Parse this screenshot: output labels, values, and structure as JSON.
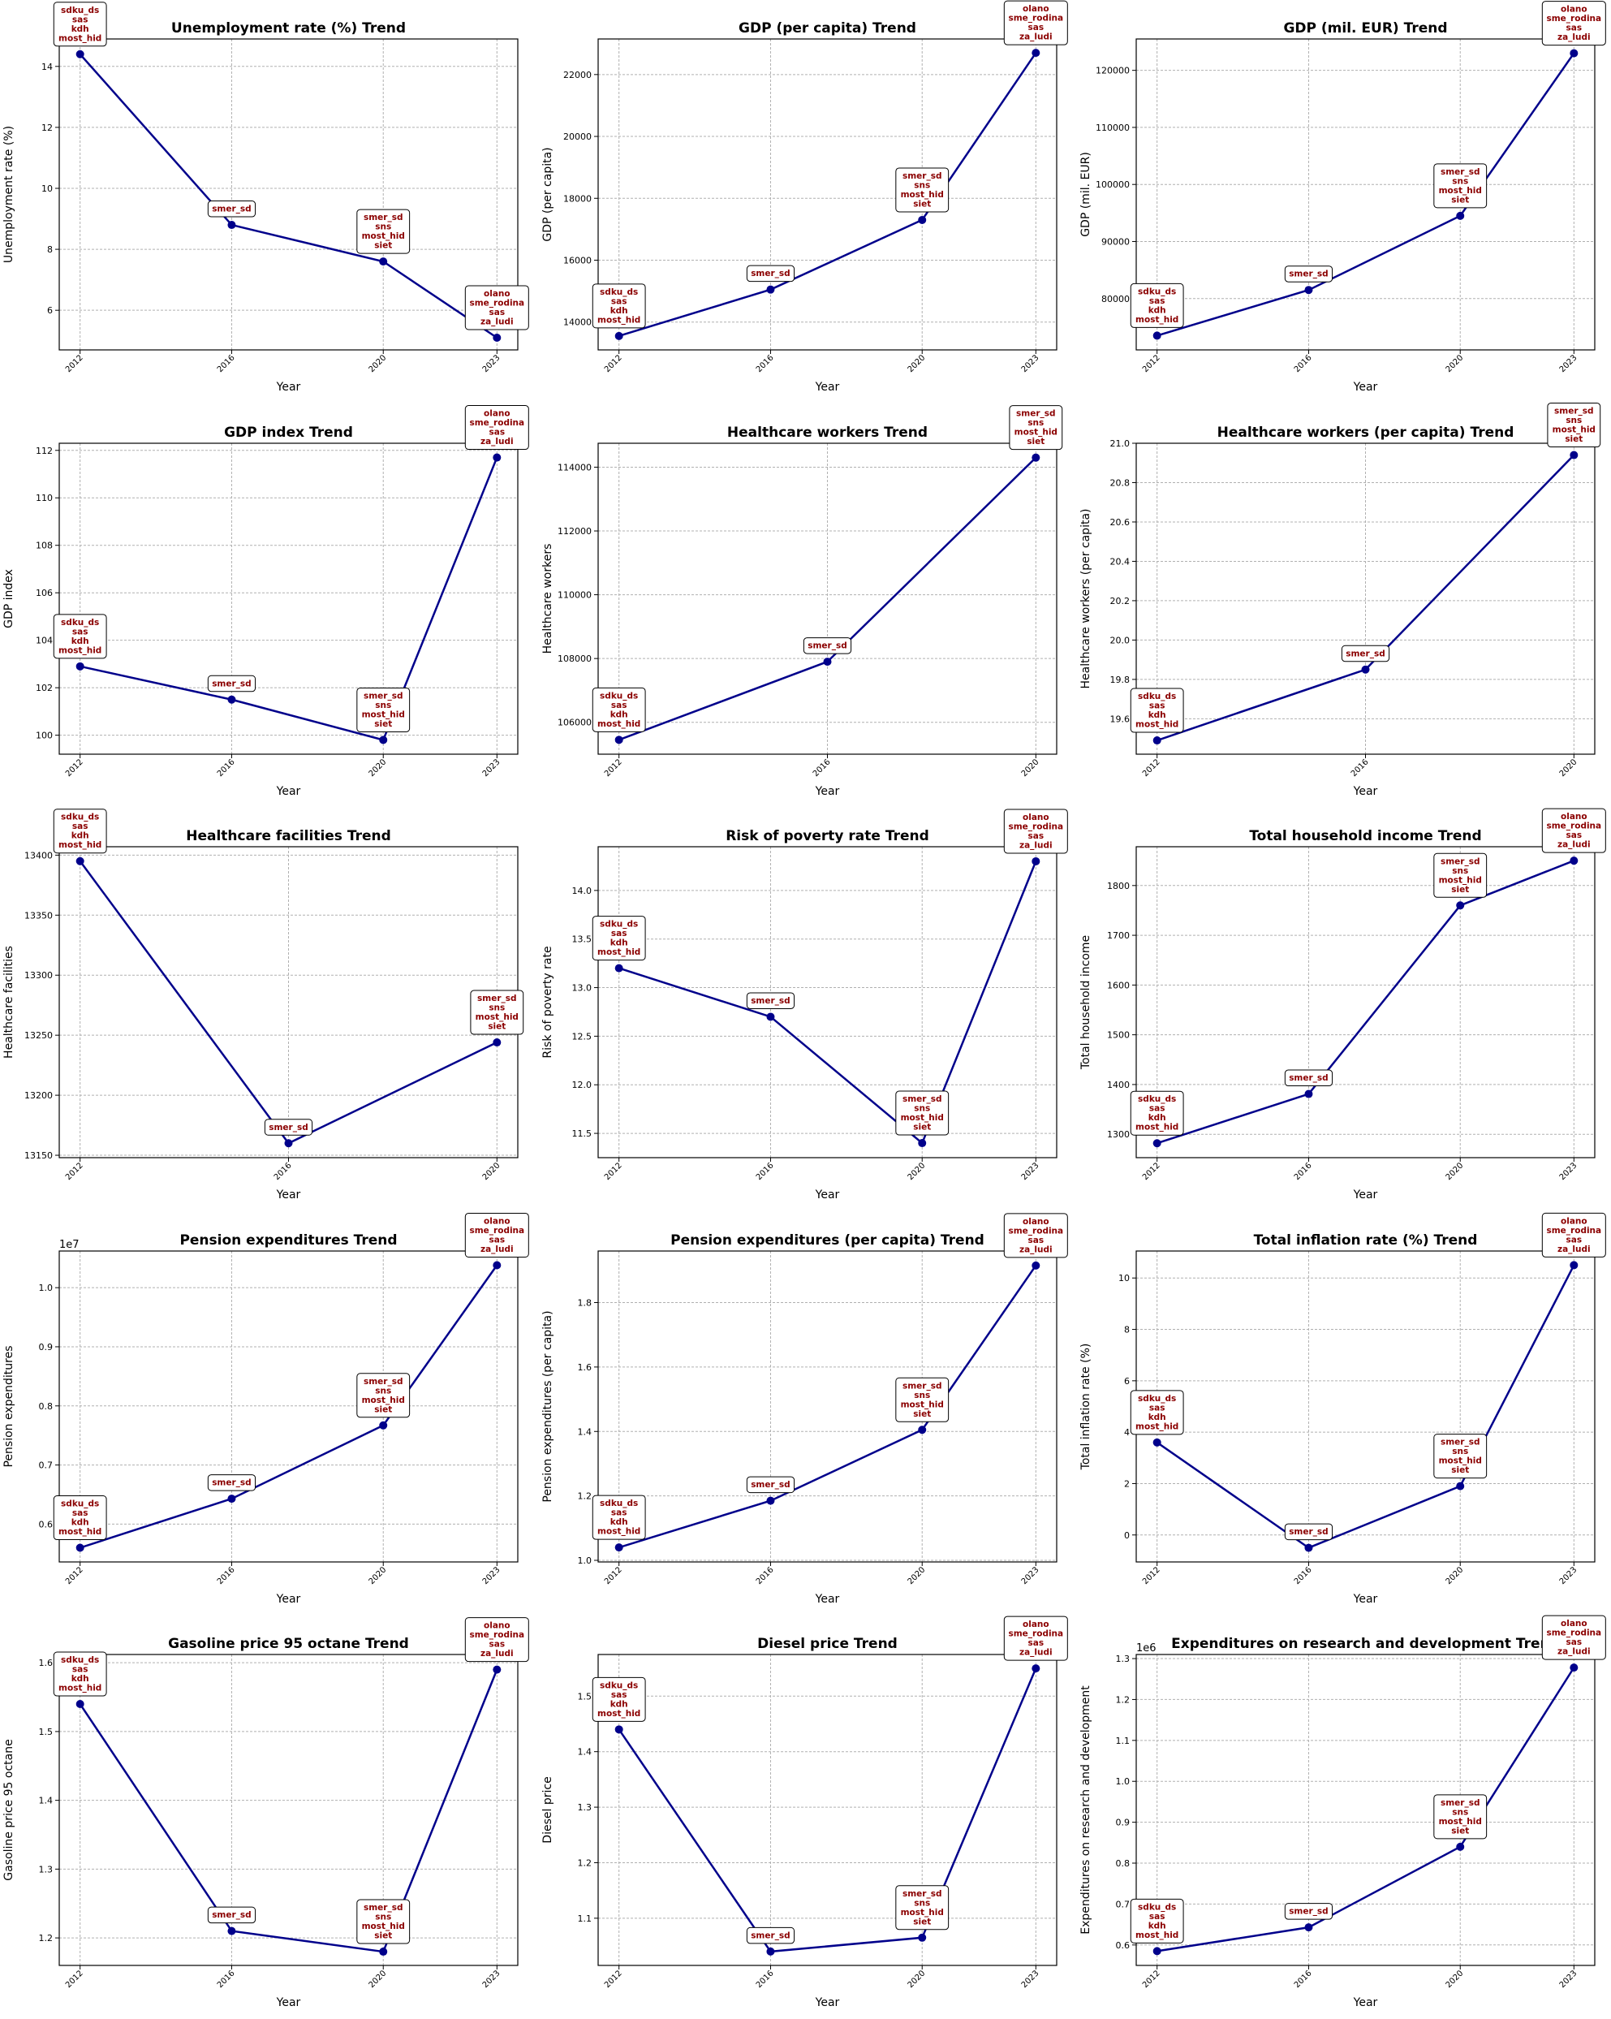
{
  "chart_data": [
    {
      "type": "line",
      "title": "Unemployment rate (%) Trend",
      "xlabel": "Year",
      "ylabel": "Unemployment rate (%)",
      "x": [
        2012,
        2016,
        2020,
        2023
      ],
      "values": [
        14.4,
        8.8,
        7.6,
        5.1
      ],
      "annotations": [
        [
          "sdku_ds",
          "sas",
          "kdh",
          "most_hid"
        ],
        [
          "smer_sd"
        ],
        [
          "smer_sd",
          "sns",
          "most_hid",
          "siet"
        ],
        [
          "olano",
          "sme_rodina",
          "sas",
          "za_ludi"
        ]
      ],
      "yticks": [
        6,
        8,
        10,
        12,
        14
      ],
      "ytick_labels": [
        "6",
        "8",
        "10",
        "12",
        "14"
      ],
      "ylim": [
        4.7,
        14.9
      ],
      "grid": true
    },
    {
      "type": "line",
      "title": "GDP (per capita) Trend",
      "xlabel": "Year",
      "ylabel": "GDP (per capita)",
      "x": [
        2012,
        2016,
        2020,
        2023
      ],
      "values": [
        13550,
        15050,
        17300,
        22700
      ],
      "annotations": [
        [
          "sdku_ds",
          "sas",
          "kdh",
          "most_hid"
        ],
        [
          "smer_sd"
        ],
        [
          "smer_sd",
          "sns",
          "most_hid",
          "siet"
        ],
        [
          "olano",
          "sme_rodina",
          "sas",
          "za_ludi"
        ]
      ],
      "yticks": [
        14000,
        16000,
        18000,
        20000,
        22000
      ],
      "ytick_labels": [
        "14000",
        "16000",
        "18000",
        "20000",
        "22000"
      ],
      "ylim": [
        13100,
        23150
      ],
      "grid": true
    },
    {
      "type": "line",
      "title": "GDP (mil. EUR) Trend",
      "xlabel": "Year",
      "ylabel": "GDP (mil. EUR)",
      "x": [
        2012,
        2016,
        2020,
        2023
      ],
      "values": [
        73500,
        81500,
        94500,
        123000
      ],
      "annotations": [
        [
          "sdku_ds",
          "sas",
          "kdh",
          "most_hid"
        ],
        [
          "smer_sd"
        ],
        [
          "smer_sd",
          "sns",
          "most_hid",
          "siet"
        ],
        [
          "olano",
          "sme_rodina",
          "sas",
          "za_ludi"
        ]
      ],
      "yticks": [
        80000,
        90000,
        100000,
        110000,
        120000
      ],
      "ytick_labels": [
        "80000",
        "90000",
        "100000",
        "110000",
        "120000"
      ],
      "ylim": [
        71000,
        125500
      ],
      "grid": true
    },
    {
      "type": "line",
      "title": "GDP index Trend",
      "xlabel": "Year",
      "ylabel": "GDP index",
      "x": [
        2012,
        2016,
        2020,
        2023
      ],
      "values": [
        102.9,
        101.5,
        99.8,
        111.7
      ],
      "annotations": [
        [
          "sdku_ds",
          "sas",
          "kdh",
          "most_hid"
        ],
        [
          "smer_sd"
        ],
        [
          "smer_sd",
          "sns",
          "most_hid",
          "siet"
        ],
        [
          "olano",
          "sme_rodina",
          "sas",
          "za_ludi"
        ]
      ],
      "yticks": [
        100,
        102,
        104,
        106,
        108,
        110,
        112
      ],
      "ytick_labels": [
        "100",
        "102",
        "104",
        "106",
        "108",
        "110",
        "112"
      ],
      "ylim": [
        99.2,
        112.3
      ],
      "grid": true
    },
    {
      "type": "line",
      "title": "Healthcare workers Trend",
      "xlabel": "Year",
      "ylabel": "Healthcare workers",
      "x": [
        2012,
        2016,
        2020
      ],
      "values": [
        105450,
        107900,
        114300
      ],
      "annotations": [
        [
          "sdku_ds",
          "sas",
          "kdh",
          "most_hid"
        ],
        [
          "smer_sd"
        ],
        [
          "smer_sd",
          "sns",
          "most_hid",
          "siet"
        ]
      ],
      "yticks": [
        106000,
        108000,
        110000,
        112000,
        114000
      ],
      "ytick_labels": [
        "106000",
        "108000",
        "110000",
        "112000",
        "114000"
      ],
      "ylim": [
        105000,
        114750
      ],
      "grid": true
    },
    {
      "type": "line",
      "title": "Healthcare workers (per capita) Trend",
      "xlabel": "Year",
      "ylabel": "Healthcare workers (per capita)",
      "x": [
        2012,
        2016,
        2020
      ],
      "values": [
        19.49,
        19.85,
        20.94
      ],
      "annotations": [
        [
          "sdku_ds",
          "sas",
          "kdh",
          "most_hid"
        ],
        [
          "smer_sd"
        ],
        [
          "smer_sd",
          "sns",
          "most_hid",
          "siet"
        ]
      ],
      "yticks": [
        19.6,
        19.8,
        20.0,
        20.2,
        20.4,
        20.6,
        20.8,
        21.0
      ],
      "ytick_labels": [
        "19.6",
        "19.8",
        "20.0",
        "20.2",
        "20.4",
        "20.6",
        "20.8",
        "21.0"
      ],
      "ylim": [
        19.42,
        21.0
      ],
      "grid": true
    },
    {
      "type": "line",
      "title": "Healthcare facilities Trend",
      "xlabel": "Year",
      "ylabel": "Healthcare facilities",
      "x": [
        2012,
        2016,
        2020
      ],
      "values": [
        13395,
        13160,
        13244
      ],
      "annotations": [
        [
          "sdku_ds",
          "sas",
          "kdh",
          "most_hid"
        ],
        [
          "smer_sd"
        ],
        [
          "smer_sd",
          "sns",
          "most_hid",
          "siet"
        ]
      ],
      "yticks": [
        13150,
        13200,
        13250,
        13300,
        13350,
        13400
      ],
      "ytick_labels": [
        "13150",
        "13200",
        "13250",
        "13300",
        "13350",
        "13400"
      ],
      "ylim": [
        13148,
        13407
      ],
      "grid": true
    },
    {
      "type": "line",
      "title": "Risk of poverty rate Trend",
      "xlabel": "Year",
      "ylabel": "Risk of poverty rate",
      "x": [
        2012,
        2016,
        2020,
        2023
      ],
      "values": [
        13.2,
        12.7,
        11.4,
        14.3
      ],
      "annotations": [
        [
          "sdku_ds",
          "sas",
          "kdh",
          "most_hid"
        ],
        [
          "smer_sd"
        ],
        [
          "smer_sd",
          "sns",
          "most_hid",
          "siet"
        ],
        [
          "olano",
          "sme_rodina",
          "sas",
          "za_ludi"
        ]
      ],
      "yticks": [
        11.5,
        12.0,
        12.5,
        13.0,
        13.5,
        14.0
      ],
      "ytick_labels": [
        "11.5",
        "12.0",
        "12.5",
        "13.0",
        "13.5",
        "14.0"
      ],
      "ylim": [
        11.25,
        14.45
      ],
      "grid": true
    },
    {
      "type": "line",
      "title": "Total household income Trend",
      "xlabel": "Year",
      "ylabel": "Total household income",
      "x": [
        2012,
        2016,
        2020,
        2023
      ],
      "values": [
        1282,
        1381,
        1760,
        1850
      ],
      "annotations": [
        [
          "sdku_ds",
          "sas",
          "kdh",
          "most_hid"
        ],
        [
          "smer_sd"
        ],
        [
          "smer_sd",
          "sns",
          "most_hid",
          "siet"
        ],
        [
          "olano",
          "sme_rodina",
          "sas",
          "za_ludi"
        ]
      ],
      "yticks": [
        1300,
        1400,
        1500,
        1600,
        1700,
        1800
      ],
      "ytick_labels": [
        "1300",
        "1400",
        "1500",
        "1600",
        "1700",
        "1800"
      ],
      "ylim": [
        1253,
        1878
      ],
      "grid": true
    },
    {
      "type": "line",
      "title": "Pension expenditures Trend",
      "xlabel": "Year",
      "ylabel": "Pension expenditures",
      "offset_label": "1e7",
      "x": [
        2012,
        2016,
        2020,
        2023
      ],
      "values": [
        5600000,
        6430000,
        7670000,
        10380000
      ],
      "annotations": [
        [
          "sdku_ds",
          "sas",
          "kdh",
          "most_hid"
        ],
        [
          "smer_sd"
        ],
        [
          "smer_sd",
          "sns",
          "most_hid",
          "siet"
        ],
        [
          "olano",
          "sme_rodina",
          "sas",
          "za_ludi"
        ]
      ],
      "yticks": [
        6000000,
        7000000,
        8000000,
        9000000,
        10000000
      ],
      "ytick_labels": [
        "0.6",
        "0.7",
        "0.8",
        "0.9",
        "1.0"
      ],
      "ylim": [
        5360000,
        10620000
      ],
      "grid": true
    },
    {
      "type": "line",
      "title": "Pension expenditures (per capita) Trend",
      "xlabel": "Year",
      "ylabel": "Pension expenditures (per capita)",
      "x": [
        2012,
        2016,
        2020,
        2023
      ],
      "values": [
        1.04,
        1.185,
        1.405,
        1.915
      ],
      "annotations": [
        [
          "sdku_ds",
          "sas",
          "kdh",
          "most_hid"
        ],
        [
          "smer_sd"
        ],
        [
          "smer_sd",
          "sns",
          "most_hid",
          "siet"
        ],
        [
          "olano",
          "sme_rodina",
          "sas",
          "za_ludi"
        ]
      ],
      "yticks": [
        1.0,
        1.2,
        1.4,
        1.6,
        1.8
      ],
      "ytick_labels": [
        "1.0",
        "1.2",
        "1.4",
        "1.6",
        "1.8"
      ],
      "ylim": [
        0.995,
        1.96
      ],
      "grid": true
    },
    {
      "type": "line",
      "title": "Total inflation rate (%) Trend",
      "xlabel": "Year",
      "ylabel": "Total inflation rate (%)",
      "x": [
        2012,
        2016,
        2020,
        2023
      ],
      "values": [
        3.6,
        -0.5,
        1.9,
        10.5
      ],
      "annotations": [
        [
          "sdku_ds",
          "sas",
          "kdh",
          "most_hid"
        ],
        [
          "smer_sd"
        ],
        [
          "smer_sd",
          "sns",
          "most_hid",
          "siet"
        ],
        [
          "olano",
          "sme_rodina",
          "sas",
          "za_ludi"
        ]
      ],
      "yticks": [
        0,
        2,
        4,
        6,
        8,
        10
      ],
      "ytick_labels": [
        "0",
        "2",
        "4",
        "6",
        "8",
        "10"
      ],
      "ylim": [
        -1.05,
        11.05
      ],
      "grid": true
    },
    {
      "type": "line",
      "title": "Gasoline price 95 octane Trend",
      "xlabel": "Year",
      "ylabel": "Gasoline price 95 octane",
      "x": [
        2012,
        2016,
        2020,
        2023
      ],
      "values": [
        1.54,
        1.21,
        1.18,
        1.59
      ],
      "annotations": [
        [
          "sdku_ds",
          "sas",
          "kdh",
          "most_hid"
        ],
        [
          "smer_sd"
        ],
        [
          "smer_sd",
          "sns",
          "most_hid",
          "siet"
        ],
        [
          "olano",
          "sme_rodina",
          "sas",
          "za_ludi"
        ]
      ],
      "yticks": [
        1.2,
        1.3,
        1.4,
        1.5,
        1.6
      ],
      "ytick_labels": [
        "1.2",
        "1.3",
        "1.4",
        "1.5",
        "1.6"
      ],
      "ylim": [
        1.16,
        1.612
      ],
      "grid": true
    },
    {
      "type": "line",
      "title": "Diesel price Trend",
      "xlabel": "Year",
      "ylabel": "Diesel price",
      "x": [
        2012,
        2016,
        2020,
        2023
      ],
      "values": [
        1.44,
        1.04,
        1.065,
        1.55
      ],
      "annotations": [
        [
          "sdku_ds",
          "sas",
          "kdh",
          "most_hid"
        ],
        [
          "smer_sd"
        ],
        [
          "smer_sd",
          "sns",
          "most_hid",
          "siet"
        ],
        [
          "olano",
          "sme_rodina",
          "sas",
          "za_ludi"
        ]
      ],
      "yticks": [
        1.1,
        1.2,
        1.3,
        1.4,
        1.5
      ],
      "ytick_labels": [
        "1.1",
        "1.2",
        "1.3",
        "1.4",
        "1.5"
      ],
      "ylim": [
        1.015,
        1.575
      ],
      "grid": true
    },
    {
      "type": "line",
      "title": "Expenditures on research and development Trend",
      "xlabel": "Year",
      "ylabel": "Expenditures on research and development",
      "offset_label": "1e6",
      "x": [
        2012,
        2016,
        2020,
        2023
      ],
      "values": [
        585000,
        643000,
        840000,
        1278000
      ],
      "annotations": [
        [
          "sdku_ds",
          "sas",
          "kdh",
          "most_hid"
        ],
        [
          "smer_sd"
        ],
        [
          "smer_sd",
          "sns",
          "most_hid",
          "siet"
        ],
        [
          "olano",
          "sme_rodina",
          "sas",
          "za_ludi"
        ]
      ],
      "yticks": [
        600000,
        700000,
        800000,
        900000,
        1000000,
        1100000,
        1200000,
        1300000
      ],
      "ytick_labels": [
        "0.6",
        "0.7",
        "0.8",
        "0.9",
        "1.0",
        "1.1",
        "1.2",
        "1.3"
      ],
      "ylim": [
        550000,
        1310000
      ],
      "grid": true
    }
  ],
  "colors": {
    "line": "#00008b",
    "annotation_text": "#8b0000",
    "grid": "#b0b0b0"
  }
}
